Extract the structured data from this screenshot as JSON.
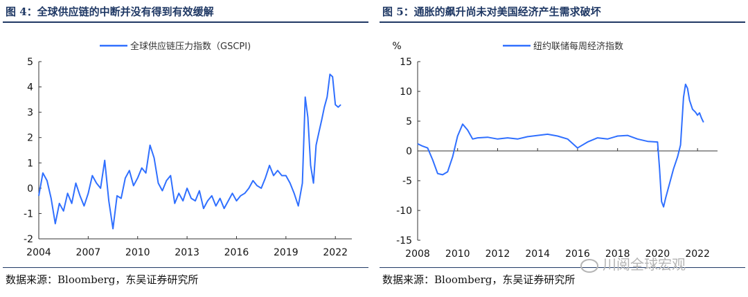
{
  "figures": [
    {
      "title": "图 4：全球供应链的中断并没有得到有效缓解",
      "source": "数据来源：Bloomberg，东吴证券研究所"
    },
    {
      "title": "图 5：通胀的飙升尚未对美国经济产生需求破坏",
      "source": "数据来源：Bloomberg，东吴证券研究所"
    }
  ],
  "watermark": "川阅全球宏观",
  "colors": {
    "series": "#2f6fff",
    "axis": "#333333",
    "title": "#1f3864"
  },
  "chart_data": [
    {
      "type": "line",
      "title": "",
      "legend_position": "top-center",
      "grid": false,
      "ylim": [
        -2,
        5
      ],
      "y_ticks": [
        5,
        4,
        3,
        2,
        1,
        0,
        -1,
        -2
      ],
      "xlim": [
        2004,
        2023
      ],
      "x_ticks": [
        "2004",
        "2007",
        "2010",
        "2013",
        "2016",
        "2019",
        "2022"
      ],
      "series": [
        {
          "name": "全球供应链压力指数（GSCPI)",
          "x": [
            2004.0,
            2004.25,
            2004.5,
            2004.75,
            2005.0,
            2005.25,
            2005.5,
            2005.75,
            2006.0,
            2006.25,
            2006.5,
            2006.75,
            2007.0,
            2007.25,
            2007.5,
            2007.75,
            2008.0,
            2008.25,
            2008.5,
            2008.75,
            2009.0,
            2009.25,
            2009.5,
            2009.75,
            2010.0,
            2010.25,
            2010.5,
            2010.75,
            2011.0,
            2011.25,
            2011.5,
            2011.75,
            2012.0,
            2012.25,
            2012.5,
            2012.75,
            2013.0,
            2013.25,
            2013.5,
            2013.75,
            2014.0,
            2014.25,
            2014.5,
            2014.75,
            2015.0,
            2015.25,
            2015.5,
            2015.75,
            2016.0,
            2016.25,
            2016.5,
            2016.75,
            2017.0,
            2017.25,
            2017.5,
            2017.75,
            2018.0,
            2018.25,
            2018.5,
            2018.75,
            2019.0,
            2019.25,
            2019.5,
            2019.75,
            2020.0,
            2020.17,
            2020.33,
            2020.5,
            2020.67,
            2020.83,
            2021.0,
            2021.17,
            2021.33,
            2021.5,
            2021.67,
            2021.83,
            2022.0,
            2022.17,
            2022.33
          ],
          "values": [
            -0.3,
            0.6,
            0.3,
            -0.4,
            -1.4,
            -0.6,
            -0.9,
            -0.2,
            -0.6,
            0.2,
            -0.3,
            -0.7,
            -0.2,
            0.5,
            0.2,
            0.0,
            1.1,
            -0.5,
            -1.6,
            -0.3,
            -0.4,
            0.4,
            0.7,
            0.1,
            0.4,
            0.8,
            0.6,
            1.7,
            1.2,
            0.2,
            -0.1,
            0.3,
            0.5,
            -0.6,
            -0.2,
            -0.5,
            0.0,
            -0.4,
            -0.5,
            -0.1,
            -0.8,
            -0.5,
            -0.3,
            -0.7,
            -0.4,
            -0.8,
            -0.5,
            -0.2,
            -0.5,
            -0.3,
            -0.2,
            0.0,
            0.3,
            0.1,
            0.0,
            0.4,
            0.9,
            0.5,
            0.7,
            0.5,
            0.5,
            0.2,
            -0.2,
            -0.7,
            0.2,
            3.6,
            2.8,
            0.9,
            0.2,
            1.7,
            2.2,
            2.7,
            3.2,
            3.6,
            4.5,
            4.4,
            3.3,
            3.2,
            3.3
          ]
        }
      ]
    },
    {
      "type": "line",
      "title": "",
      "ylabel": "%",
      "legend_position": "top-center",
      "grid": false,
      "ylim": [
        -15,
        15
      ],
      "y_ticks": [
        15,
        10,
        5,
        0,
        -5,
        -10,
        -15
      ],
      "xlim": [
        2008,
        2023
      ],
      "x_ticks": [
        "2008",
        "2010",
        "2012",
        "2014",
        "2016",
        "2018",
        "2020",
        "2022"
      ],
      "series": [
        {
          "name": "纽约联储每周经济指数",
          "x": [
            2008.0,
            2008.25,
            2008.5,
            2008.75,
            2009.0,
            2009.25,
            2009.5,
            2009.75,
            2010.0,
            2010.25,
            2010.5,
            2010.75,
            2011.0,
            2011.5,
            2012.0,
            2012.5,
            2013.0,
            2013.5,
            2014.0,
            2014.5,
            2015.0,
            2015.5,
            2016.0,
            2016.5,
            2017.0,
            2017.5,
            2018.0,
            2018.5,
            2019.0,
            2019.5,
            2020.0,
            2020.1,
            2020.2,
            2020.3,
            2020.4,
            2020.6,
            2020.8,
            2021.0,
            2021.15,
            2021.3,
            2021.4,
            2021.5,
            2021.6,
            2021.75,
            2021.9,
            2022.0,
            2022.1,
            2022.2,
            2022.3
          ],
          "values": [
            1.2,
            0.8,
            0.5,
            -1.5,
            -3.8,
            -4.0,
            -3.5,
            -1.0,
            2.5,
            4.5,
            3.5,
            2.0,
            2.2,
            2.3,
            2.0,
            2.2,
            2.0,
            2.4,
            2.6,
            2.8,
            2.5,
            2.0,
            0.5,
            1.5,
            2.2,
            2.0,
            2.5,
            2.6,
            2.0,
            1.6,
            1.5,
            -3.0,
            -8.5,
            -9.4,
            -8.0,
            -5.5,
            -3.0,
            -1.0,
            1.0,
            9.0,
            11.2,
            10.5,
            8.5,
            7.0,
            6.5,
            6.0,
            6.4,
            5.5,
            4.8
          ]
        }
      ]
    }
  ]
}
